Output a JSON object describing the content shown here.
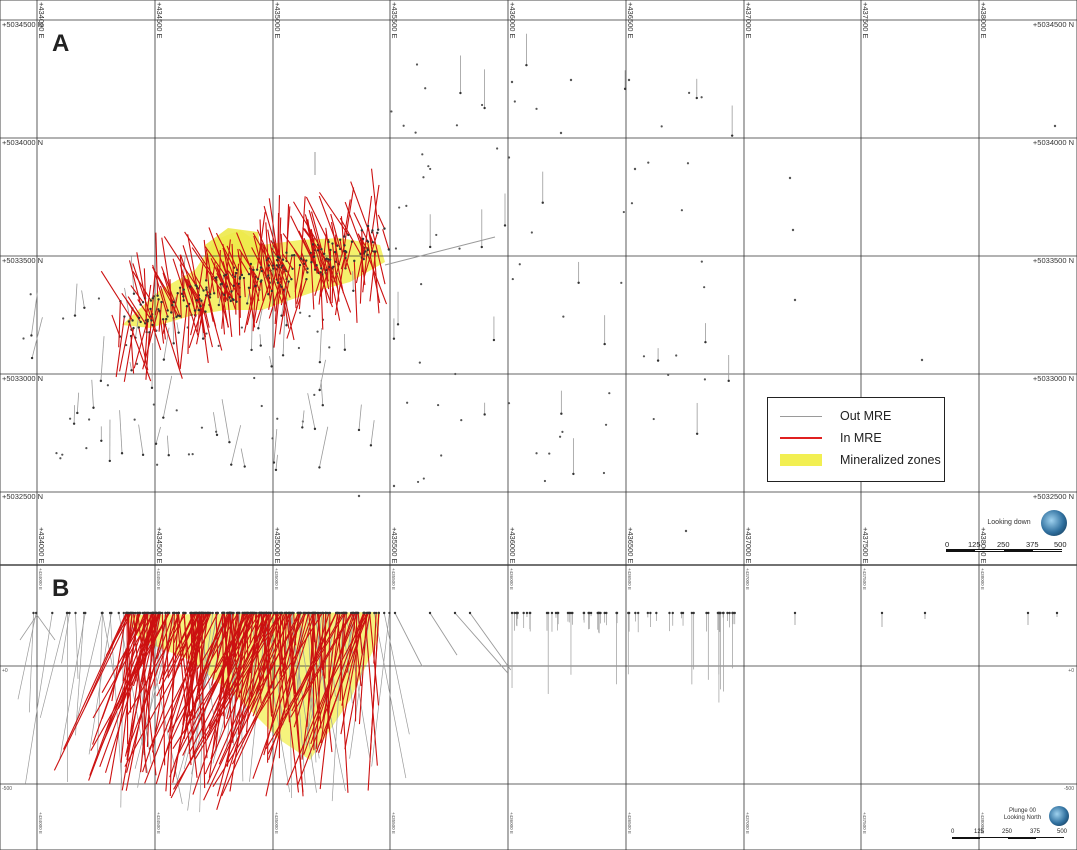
{
  "panel_a": {
    "label": "A",
    "easting_labels": [
      "+434000 E",
      "+434500 E",
      "+435000 E",
      "+435500 E",
      "+436000 E",
      "+436500 E",
      "+437000 E",
      "+437500 E",
      "+438000 E"
    ],
    "northing_labels": [
      "+5034500 N",
      "+5034000 N",
      "+5033500 N",
      "+5033000 N",
      "+5032500 N"
    ],
    "view_label": "Looking down",
    "scale_ticks": [
      "0",
      "125",
      "250",
      "375",
      "500"
    ]
  },
  "panel_b": {
    "label": "B",
    "easting_labels": [
      "+434000 E",
      "+434500 E",
      "+435000 E",
      "+435500 E",
      "+436000 E",
      "+436500 E",
      "+437000 E",
      "+437500 E",
      "+438000 E"
    ],
    "elevation_labels": [
      "+0",
      "-500"
    ],
    "view_label_1": "Plunge 00",
    "view_label_2": "Looking North",
    "scale_ticks": [
      "0",
      "125",
      "250",
      "375",
      "500"
    ]
  },
  "legend": {
    "items": [
      {
        "label": "Out MRE",
        "color": "#9a9a9a"
      },
      {
        "label": "In MRE",
        "color": "#e02020"
      },
      {
        "label": "Mineralized zones",
        "color": "#f2ef52"
      }
    ]
  },
  "colors": {
    "out_mre": "#9a9a9a",
    "in_mre": "#cc1010",
    "mineralized": "#f2ef52",
    "grid": "#333333"
  }
}
